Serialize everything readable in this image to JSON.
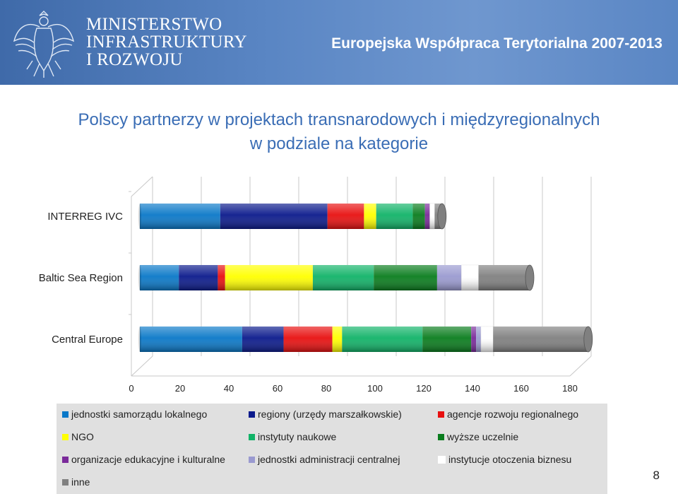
{
  "header": {
    "ministry_lines": [
      "MINISTERSTWO",
      "INFRASTRUKTURY",
      "I ROZWOJU"
    ],
    "program": "Europejska Współpraca Terytorialna 2007-2013",
    "emblem_icon": "polish-eagle-emblem"
  },
  "title_lines": [
    "Polscy partnerzy w projektach transnarodowych i międzyregionalnych",
    "w podziale na kategorie"
  ],
  "page_number": "8",
  "chart_data": {
    "type": "bar",
    "orientation": "horizontal",
    "stacked": true,
    "style_3d": true,
    "title": "Polscy partnerzy w projektach transnarodowych i międzyregionalnych w podziale na kategorie",
    "categories": [
      "INTERREG IVC",
      "Baltic Sea Region",
      "Central Europe"
    ],
    "x_ticks": [
      0,
      20,
      40,
      60,
      80,
      100,
      120,
      140,
      160,
      180
    ],
    "xlim": [
      0,
      180
    ],
    "grid": true,
    "legend_position": "bottom",
    "series": [
      {
        "name": "jednostki samorządu lokalnego",
        "color": "#0a78c8",
        "values": [
          33,
          16,
          42
        ]
      },
      {
        "name": "regiony (urzędy marszałkowskie)",
        "color": "#0b1a8c",
        "values": [
          44,
          16,
          17
        ]
      },
      {
        "name": "agencje rozwoju regionalnego",
        "color": "#e81010",
        "values": [
          15,
          3,
          20
        ]
      },
      {
        "name": "NGO",
        "color": "#ffff00",
        "values": [
          5,
          36,
          4
        ]
      },
      {
        "name": "instytuty naukowe",
        "color": "#11b368",
        "values": [
          15,
          25,
          33
        ]
      },
      {
        "name": "wyższe uczelnie",
        "color": "#0a7d1e",
        "values": [
          5,
          26,
          20
        ]
      },
      {
        "name": "organizacje edukacyjne i kulturalne",
        "color": "#7a2a9a",
        "values": [
          2,
          0,
          2
        ]
      },
      {
        "name": "jednostki administracji centralnej",
        "color": "#9a9ad0",
        "values": [
          0,
          10,
          2
        ]
      },
      {
        "name": "instytucje otoczenia biznesu",
        "color": "#ffffff",
        "values": [
          2,
          7,
          5
        ]
      },
      {
        "name": "inne",
        "color": "#808080",
        "values": [
          3,
          21,
          39
        ]
      }
    ]
  }
}
